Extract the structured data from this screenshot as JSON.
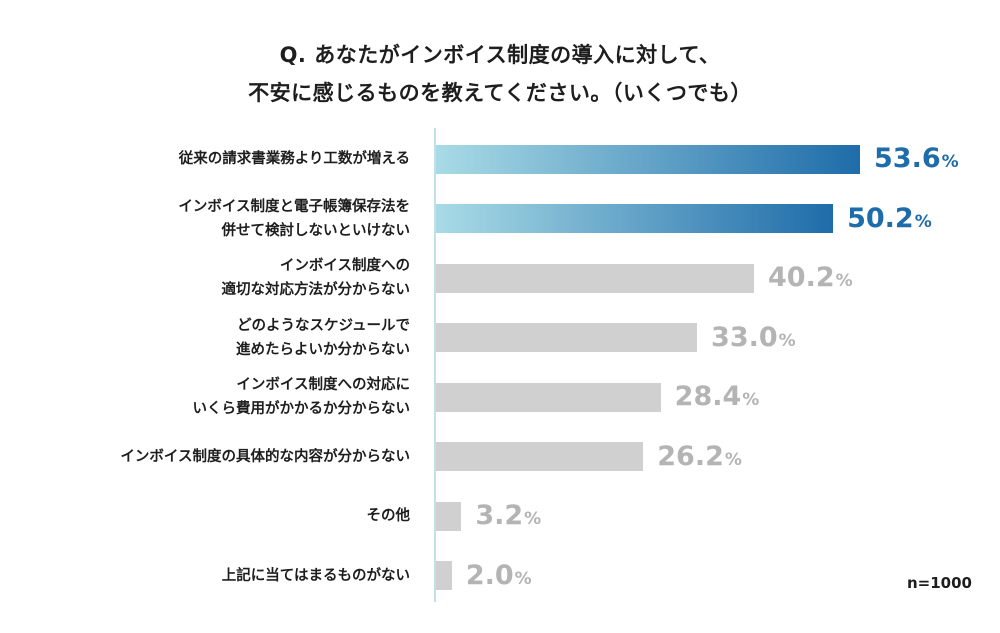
{
  "chart_data": {
    "type": "bar",
    "orientation": "horizontal",
    "title_lines": [
      "Q. あなたがインボイス制度の導入に対して、",
      "不安に感じるものを教えてください。（いくつでも）"
    ],
    "categories": [
      [
        "従来の請求書業務より工数が増える"
      ],
      [
        "インボイス制度と電子帳簿保存法を",
        "併せて検討しないといけない"
      ],
      [
        "インボイス制度への",
        "適切な対応方法が分からない"
      ],
      [
        "どのようなスケジュールで",
        "進めたらよいか分からない"
      ],
      [
        "インボイス制度への対応に",
        "いくら費用がかかるか分からない"
      ],
      [
        "インボイス制度の具体的な内容が分からない"
      ],
      [
        "その他"
      ],
      [
        "上記に当てはまるものがない"
      ]
    ],
    "values": [
      53.6,
      50.2,
      40.2,
      33.0,
      28.4,
      26.2,
      3.2,
      2.0
    ],
    "value_labels": [
      "53.6",
      "50.2",
      "40.2",
      "33.0",
      "28.4",
      "26.2",
      "3.2",
      "2.0"
    ],
    "unit": "%",
    "highlight_count": 2,
    "sample_size": "n=1000"
  },
  "colors": {
    "highlight_start": "#a9dbe6",
    "highlight_end": "#1e6ca9",
    "highlight_text": "#1e6ca9",
    "normal_bar": "#d0d0d0",
    "normal_text": "#b4b4b4",
    "axis": "#bfe1e9"
  }
}
